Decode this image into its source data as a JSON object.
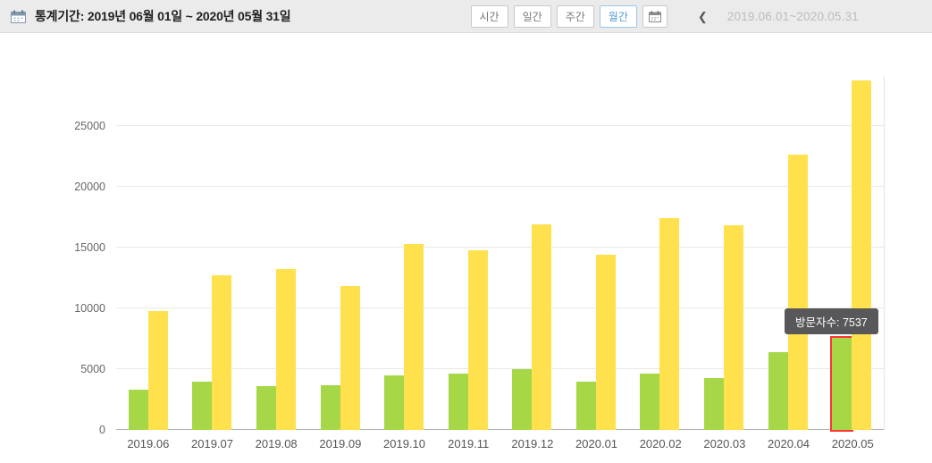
{
  "header": {
    "title": "통계기간: 2019년 06월 01일 ~ 2020년 05월 31일",
    "buttons": [
      {
        "label": "시간",
        "active": false
      },
      {
        "label": "일간",
        "active": false
      },
      {
        "label": "주간",
        "active": false
      },
      {
        "label": "월간",
        "active": true
      }
    ],
    "chevron": "❮",
    "period_range": "2019.06.01~2020.05.31"
  },
  "tooltip": {
    "label": "방문자수: 7537"
  },
  "colors": {
    "visitor_bar": "#a6d747",
    "secondary_bar": "#ffe14d",
    "highlight_outline": "#ff3333",
    "active_button": "#4f9cd8"
  },
  "chart_data": {
    "type": "bar",
    "title": "",
    "xlabel": "",
    "ylabel": "",
    "grid": true,
    "legend": "none",
    "categories": [
      "2019.06",
      "2019.07",
      "2019.08",
      "2019.09",
      "2019.10",
      "2019.11",
      "2019.12",
      "2020.01",
      "2020.02",
      "2020.03",
      "2020.04",
      "2020.05"
    ],
    "series": [
      {
        "name": "방문자수",
        "color": "#a6d747",
        "values": [
          3300,
          4000,
          3600,
          3650,
          4450,
          4600,
          5000,
          4000,
          4600,
          4250,
          6400,
          7537
        ]
      },
      {
        "name": "",
        "color": "#ffe14d",
        "values": [
          9800,
          12700,
          13200,
          11800,
          15300,
          14800,
          16900,
          14400,
          17400,
          16800,
          22600,
          28700
        ]
      }
    ],
    "yticks": [
      0,
      5000,
      10000,
      15000,
      20000,
      25000
    ],
    "ylim": [
      0,
      29100
    ],
    "highlight": {
      "category": "2020.05",
      "series": 0,
      "value": 7537
    }
  }
}
